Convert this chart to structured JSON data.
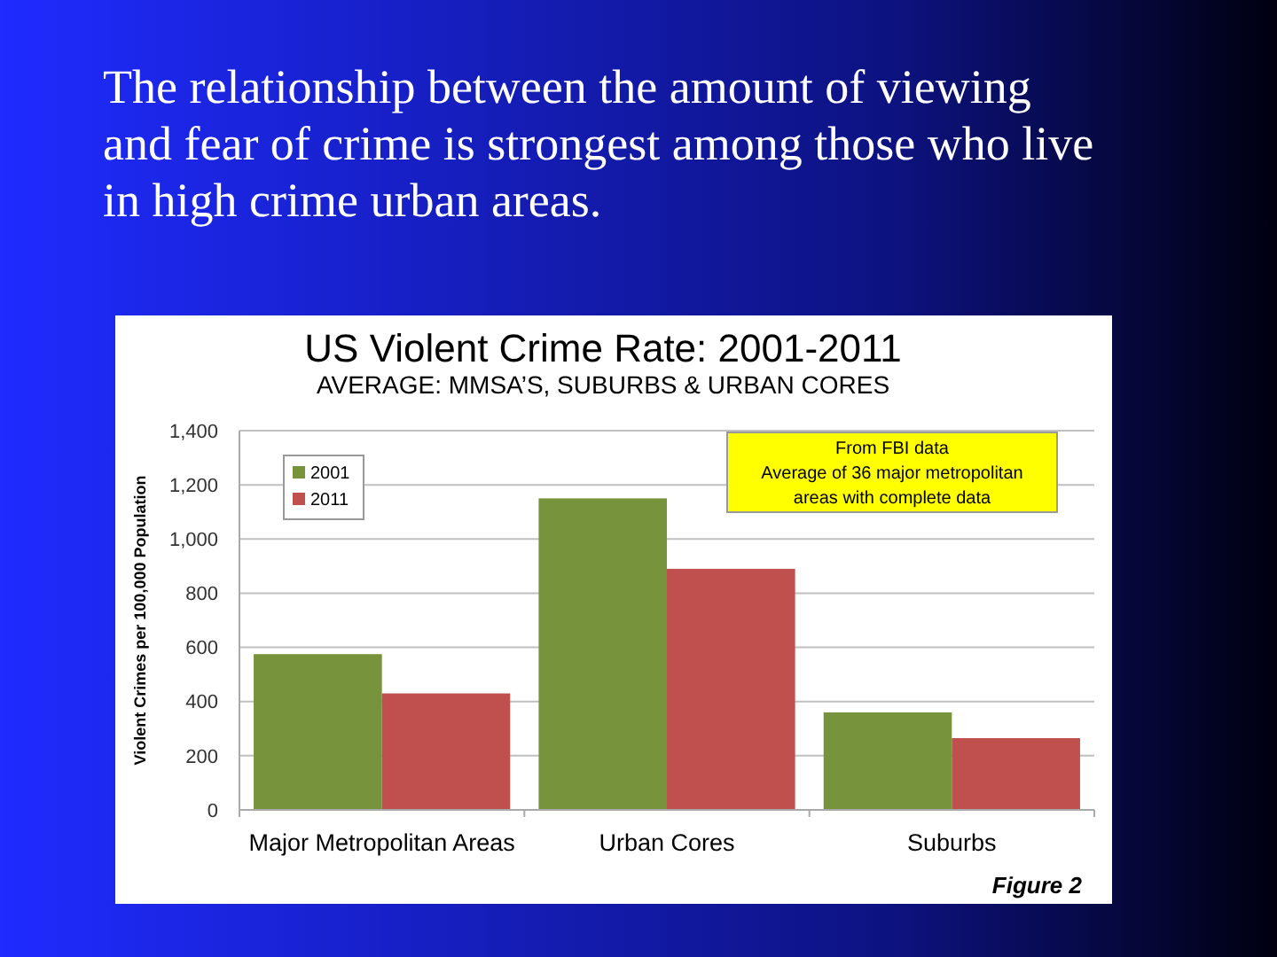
{
  "chart_data": {
    "type": "bar",
    "title": "US Violent Crime Rate: 2001-2011",
    "subtitle": "AVERAGE: MMSA’S, SUBURBS & URBAN CORES",
    "ylabel": "Violent Crimes per 100,000 Population",
    "categories": [
      "Major Metropolitan Areas",
      "Urban Cores",
      "Suburbs"
    ],
    "series": [
      {
        "name": "2001",
        "color": "#77933c",
        "values": [
          575,
          1150,
          360
        ]
      },
      {
        "name": "2011",
        "color": "#c0504d",
        "values": [
          430,
          890,
          265
        ]
      }
    ],
    "ylim": [
      0,
      1400
    ],
    "yticks": [
      0,
      {
        "value": 200,
        "label": "200"
      },
      {
        "value": 400,
        "label": "400"
      },
      {
        "value": 600,
        "label": "600"
      },
      {
        "value": 800,
        "label": "800"
      },
      {
        "value": 1000,
        "label": "1,000"
      },
      {
        "value": 1200,
        "label": "1,200"
      },
      {
        "value": 1400,
        "label": "1,400"
      }
    ],
    "grid": "y",
    "legend": "top left",
    "annotations": [
      "The relationship between the amount of viewing and fear of crime is strongest among those who live in high crime urban areas.",
      "From FBI data\nAverage of 36 major metropolitan areas with complete data",
      "Figure 2"
    ]
  }
}
